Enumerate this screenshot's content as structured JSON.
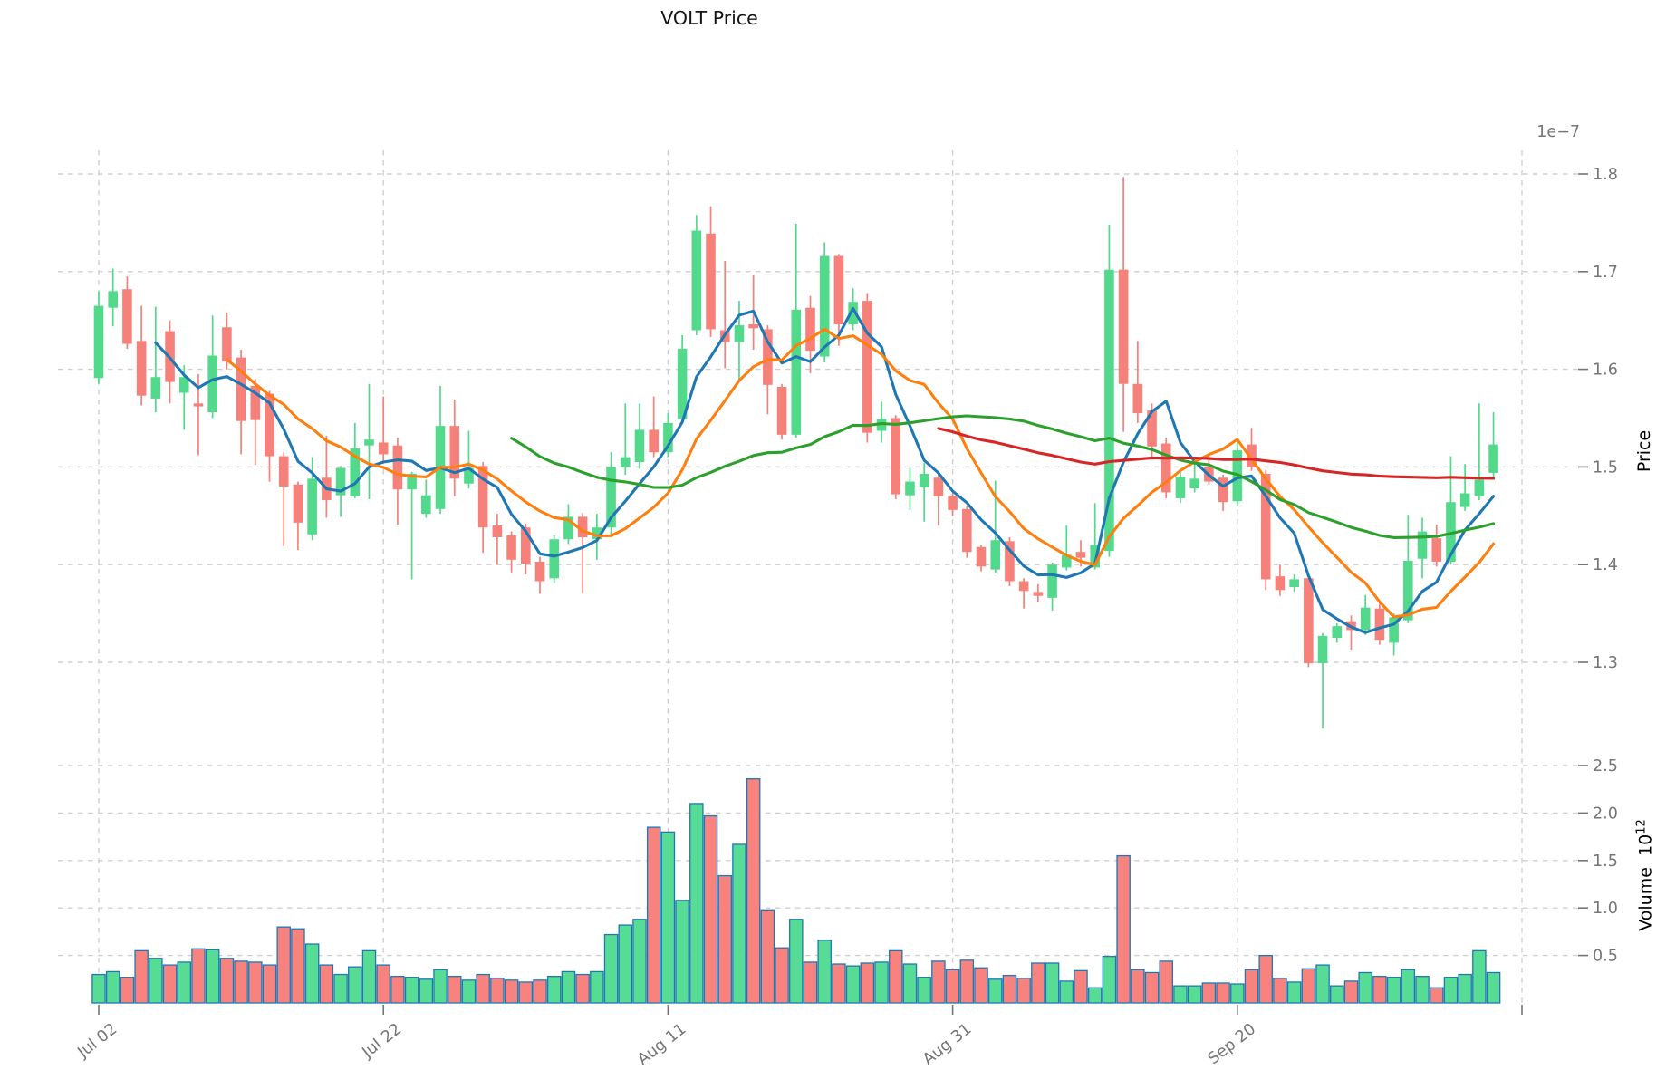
{
  "title": "VOLT Price",
  "axes": {
    "price": {
      "label": "Price",
      "offset_text": "1e−7",
      "ticks": [
        1.8,
        1.7,
        1.6,
        1.5,
        1.4,
        1.3
      ]
    },
    "volume": {
      "label_base": "Volume",
      "unit_base": "10",
      "unit_exponent": "12",
      "ticks": [
        2.5,
        2.0,
        1.5,
        1.0,
        0.5
      ]
    },
    "x": {
      "tick_labels": [
        "Jul 02",
        "Jul 22",
        "Aug 11",
        "Aug 31",
        "Sep 20",
        ""
      ],
      "tick_positions_days": [
        0,
        20,
        40,
        60,
        80,
        100
      ]
    }
  },
  "colors": {
    "up": "#53d98b",
    "down": "#f5817a",
    "volume_up": "#57dc96",
    "volume_down": "#f8837e",
    "volume_edge": "#1f77b4",
    "ma5": "#1f77b4",
    "ma10": "#ff7f0e",
    "ma30": "#2ca02c",
    "ma60": "#d62728",
    "grid": "#cfcfcf",
    "tick_text": "#757575",
    "title_text": "#151515"
  },
  "chart_data": {
    "type": "candlestick+volume",
    "title": "VOLT Price",
    "price_unit": "1e-7",
    "volume_unit": "1e12",
    "ylim_price": [
      1.225,
      1.82
    ],
    "ylim_volume": [
      0,
      2.57
    ],
    "grid": true,
    "moving_average_windows": {
      "blue": 5,
      "orange": 10,
      "green": 30,
      "red": 60
    },
    "dates": [
      "Jul 02",
      "Jul 03",
      "Jul 04",
      "Jul 05",
      "Jul 06",
      "Jul 07",
      "Jul 08",
      "Jul 09",
      "Jul 10",
      "Jul 11",
      "Jul 12",
      "Jul 13",
      "Jul 14",
      "Jul 15",
      "Jul 16",
      "Jul 17",
      "Jul 18",
      "Jul 19",
      "Jul 20",
      "Jul 21",
      "Jul 22",
      "Jul 23",
      "Jul 24",
      "Jul 25",
      "Jul 26",
      "Jul 27",
      "Jul 28",
      "Jul 29",
      "Jul 30",
      "Jul 31",
      "Aug 01",
      "Aug 02",
      "Aug 03",
      "Aug 04",
      "Aug 05",
      "Aug 06",
      "Aug 07",
      "Aug 08",
      "Aug 09",
      "Aug 10",
      "Aug 11",
      "Aug 12",
      "Aug 13",
      "Aug 14",
      "Aug 15",
      "Aug 16",
      "Aug 17",
      "Aug 18",
      "Aug 19",
      "Aug 20",
      "Aug 21",
      "Aug 22",
      "Aug 23",
      "Aug 24",
      "Aug 25",
      "Aug 26",
      "Aug 27",
      "Aug 28",
      "Aug 29",
      "Aug 30",
      "Aug 31",
      "Sep 01",
      "Sep 02",
      "Sep 03",
      "Sep 04",
      "Sep 05",
      "Sep 06",
      "Sep 07",
      "Sep 08",
      "Sep 09",
      "Sep 10",
      "Sep 11",
      "Sep 12",
      "Sep 13",
      "Sep 14",
      "Sep 15",
      "Sep 16",
      "Sep 17",
      "Sep 18",
      "Sep 19",
      "Sep 20",
      "Sep 21",
      "Sep 22",
      "Sep 23",
      "Sep 24",
      "Sep 25",
      "Sep 26",
      "Sep 27",
      "Sep 28",
      "Sep 29",
      "Sep 30",
      "Oct 01",
      "Oct 02",
      "Oct 03",
      "Oct 04",
      "Oct 05",
      "Oct 06",
      "Oct 07",
      "Oct 08"
    ],
    "ohlc": [
      [
        1.591,
        1.68,
        1.585,
        1.665
      ],
      [
        1.663,
        1.703,
        1.644,
        1.68
      ],
      [
        1.682,
        1.695,
        1.621,
        1.626
      ],
      [
        1.629,
        1.665,
        1.563,
        1.573
      ],
      [
        1.57,
        1.664,
        1.556,
        1.592
      ],
      [
        1.639,
        1.65,
        1.565,
        1.587
      ],
      [
        1.576,
        1.604,
        1.538,
        1.592
      ],
      [
        1.565,
        1.595,
        1.512,
        1.562
      ],
      [
        1.556,
        1.655,
        1.55,
        1.614
      ],
      [
        1.643,
        1.658,
        1.6,
        1.608
      ],
      [
        1.612,
        1.62,
        1.513,
        1.547
      ],
      [
        1.583,
        1.59,
        1.502,
        1.548
      ],
      [
        1.575,
        1.578,
        1.485,
        1.511
      ],
      [
        1.511,
        1.515,
        1.419,
        1.48
      ],
      [
        1.482,
        1.485,
        1.415,
        1.443
      ],
      [
        1.431,
        1.51,
        1.425,
        1.488
      ],
      [
        1.489,
        1.532,
        1.448,
        1.466
      ],
      [
        1.471,
        1.501,
        1.449,
        1.499
      ],
      [
        1.47,
        1.545,
        1.468,
        1.519
      ],
      [
        1.522,
        1.585,
        1.467,
        1.528
      ],
      [
        1.525,
        1.572,
        1.504,
        1.513
      ],
      [
        1.522,
        1.53,
        1.441,
        1.477
      ],
      [
        1.477,
        1.495,
        1.385,
        1.493
      ],
      [
        1.452,
        1.487,
        1.448,
        1.471
      ],
      [
        1.457,
        1.583,
        1.452,
        1.542
      ],
      [
        1.542,
        1.569,
        1.47,
        1.488
      ],
      [
        1.483,
        1.537,
        1.478,
        1.499
      ],
      [
        1.501,
        1.505,
        1.412,
        1.438
      ],
      [
        1.44,
        1.452,
        1.4,
        1.428
      ],
      [
        1.43,
        1.434,
        1.392,
        1.405
      ],
      [
        1.438,
        1.442,
        1.39,
        1.401
      ],
      [
        1.403,
        1.408,
        1.37,
        1.383
      ],
      [
        1.386,
        1.43,
        1.381,
        1.426
      ],
      [
        1.426,
        1.462,
        1.421,
        1.449
      ],
      [
        1.449,
        1.453,
        1.371,
        1.428
      ],
      [
        1.426,
        1.452,
        1.405,
        1.438
      ],
      [
        1.438,
        1.515,
        1.43,
        1.5
      ],
      [
        1.5,
        1.565,
        1.492,
        1.51
      ],
      [
        1.505,
        1.565,
        1.498,
        1.538
      ],
      [
        1.538,
        1.572,
        1.51,
        1.515
      ],
      [
        1.515,
        1.555,
        1.51,
        1.545
      ],
      [
        1.549,
        1.635,
        1.544,
        1.621
      ],
      [
        1.64,
        1.758,
        1.635,
        1.742
      ],
      [
        1.739,
        1.767,
        1.633,
        1.641
      ],
      [
        1.64,
        1.711,
        1.601,
        1.628
      ],
      [
        1.628,
        1.67,
        1.589,
        1.645
      ],
      [
        1.646,
        1.697,
        1.62,
        1.642
      ],
      [
        1.641,
        1.645,
        1.554,
        1.584
      ],
      [
        1.582,
        1.585,
        1.528,
        1.533
      ],
      [
        1.533,
        1.749,
        1.53,
        1.661
      ],
      [
        1.663,
        1.675,
        1.596,
        1.619
      ],
      [
        1.613,
        1.73,
        1.607,
        1.716
      ],
      [
        1.716,
        1.718,
        1.624,
        1.646
      ],
      [
        1.646,
        1.683,
        1.64,
        1.669
      ],
      [
        1.67,
        1.678,
        1.525,
        1.535
      ],
      [
        1.537,
        1.567,
        1.525,
        1.549
      ],
      [
        1.55,
        1.553,
        1.467,
        1.472
      ],
      [
        1.471,
        1.499,
        1.456,
        1.485
      ],
      [
        1.479,
        1.504,
        1.444,
        1.493
      ],
      [
        1.489,
        1.493,
        1.44,
        1.47
      ],
      [
        1.47,
        1.473,
        1.45,
        1.456
      ],
      [
        1.457,
        1.46,
        1.407,
        1.413
      ],
      [
        1.418,
        1.42,
        1.393,
        1.398
      ],
      [
        1.395,
        1.486,
        1.391,
        1.425
      ],
      [
        1.424,
        1.428,
        1.378,
        1.383
      ],
      [
        1.383,
        1.386,
        1.355,
        1.373
      ],
      [
        1.372,
        1.38,
        1.362,
        1.368
      ],
      [
        1.366,
        1.402,
        1.353,
        1.4
      ],
      [
        1.397,
        1.44,
        1.394,
        1.41
      ],
      [
        1.413,
        1.425,
        1.398,
        1.407
      ],
      [
        1.397,
        1.463,
        1.395,
        1.42
      ],
      [
        1.414,
        1.748,
        1.408,
        1.702
      ],
      [
        1.702,
        1.797,
        1.536,
        1.585
      ],
      [
        1.585,
        1.629,
        1.545,
        1.555
      ],
      [
        1.558,
        1.565,
        1.51,
        1.521
      ],
      [
        1.524,
        1.53,
        1.468,
        1.474
      ],
      [
        1.468,
        1.495,
        1.463,
        1.49
      ],
      [
        1.478,
        1.51,
        1.474,
        1.488
      ],
      [
        1.5,
        1.514,
        1.482,
        1.485
      ],
      [
        1.489,
        1.492,
        1.455,
        1.464
      ],
      [
        1.465,
        1.525,
        1.46,
        1.517
      ],
      [
        1.523,
        1.54,
        1.496,
        1.5
      ],
      [
        1.493,
        1.497,
        1.374,
        1.385
      ],
      [
        1.388,
        1.4,
        1.368,
        1.374
      ],
      [
        1.377,
        1.39,
        1.372,
        1.385
      ],
      [
        1.386,
        1.39,
        1.295,
        1.299
      ],
      [
        1.299,
        1.33,
        1.232,
        1.327
      ],
      [
        1.325,
        1.34,
        1.32,
        1.337
      ],
      [
        1.342,
        1.348,
        1.313,
        1.333
      ],
      [
        1.333,
        1.369,
        1.328,
        1.356
      ],
      [
        1.355,
        1.36,
        1.318,
        1.323
      ],
      [
        1.32,
        1.35,
        1.307,
        1.346
      ],
      [
        1.343,
        1.451,
        1.34,
        1.404
      ],
      [
        1.406,
        1.448,
        1.386,
        1.434
      ],
      [
        1.427,
        1.441,
        1.398,
        1.403
      ],
      [
        1.403,
        1.511,
        1.4,
        1.464
      ],
      [
        1.459,
        1.503,
        1.455,
        1.473
      ],
      [
        1.47,
        1.565,
        1.466,
        1.487
      ],
      [
        1.494,
        1.556,
        1.49,
        1.523
      ]
    ],
    "volume": [
      0.3,
      0.33,
      0.27,
      0.55,
      0.47,
      0.4,
      0.43,
      0.57,
      0.56,
      0.47,
      0.44,
      0.43,
      0.4,
      0.8,
      0.78,
      0.62,
      0.4,
      0.3,
      0.38,
      0.55,
      0.4,
      0.28,
      0.27,
      0.25,
      0.35,
      0.28,
      0.24,
      0.3,
      0.26,
      0.24,
      0.22,
      0.24,
      0.28,
      0.33,
      0.3,
      0.33,
      0.72,
      0.82,
      0.88,
      1.85,
      1.8,
      1.08,
      2.1,
      1.97,
      1.34,
      1.67,
      2.36,
      0.98,
      0.58,
      0.88,
      0.43,
      0.66,
      0.41,
      0.39,
      0.42,
      0.43,
      0.55,
      0.41,
      0.27,
      0.44,
      0.35,
      0.45,
      0.37,
      0.25,
      0.29,
      0.26,
      0.42,
      0.42,
      0.23,
      0.34,
      0.16,
      0.49,
      1.55,
      0.35,
      0.32,
      0.44,
      0.18,
      0.18,
      0.21,
      0.21,
      0.2,
      0.35,
      0.5,
      0.26,
      0.22,
      0.36,
      0.4,
      0.18,
      0.23,
      0.32,
      0.28,
      0.27,
      0.35,
      0.28,
      0.16,
      0.27,
      0.3,
      0.55,
      0.32
    ]
  }
}
